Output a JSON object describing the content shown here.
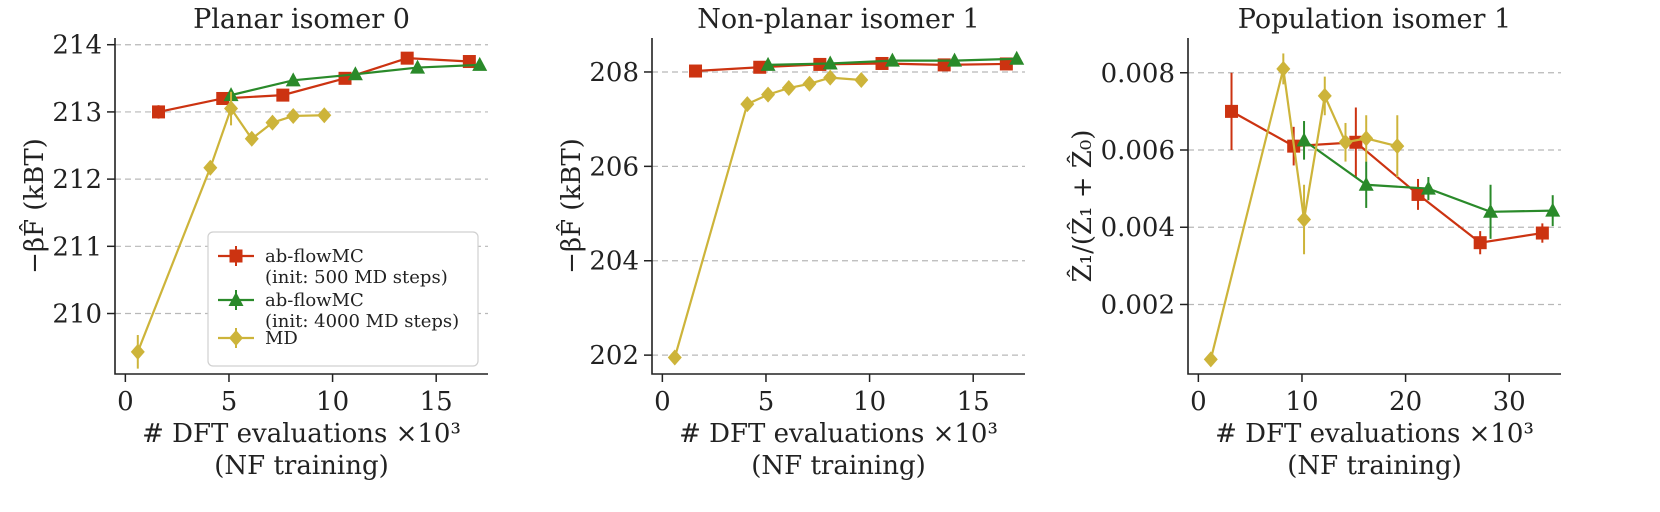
{
  "colors": {
    "ab_500": "#cc3311",
    "ab_4000": "#2a8a2a",
    "md": "#cdb43a",
    "grid": "#b8b8b8",
    "axis": "#222222"
  },
  "chart_data": [
    {
      "type": "line",
      "title": "Planar isomer 0",
      "xlabel": "# DFT evaluations ×10³",
      "xlabel2": "(NF training)",
      "ylabel": "−βF̂  (kBT)",
      "xlim": [
        -0.5,
        17.5
      ],
      "ylim": [
        209.1,
        214.1
      ],
      "xticks": [
        0,
        5,
        10,
        15
      ],
      "xtick_labels": [
        "0",
        "5",
        "10",
        "15"
      ],
      "yticks": [
        210,
        211,
        212,
        213,
        214
      ],
      "ytick_labels": [
        "210",
        "211",
        "212",
        "213",
        "214"
      ],
      "grid": "y",
      "legend": {
        "position": "lower-right",
        "entries": [
          {
            "label": "ab-flowMC",
            "label2": "(init: 500 MD steps)",
            "series": 0
          },
          {
            "label": "ab-flowMC",
            "label2": "(init: 4000 MD steps)",
            "series": 1
          },
          {
            "label": "MD",
            "label2": "",
            "series": 2
          }
        ]
      },
      "series": [
        {
          "name": "ab-flowMC (init: 500 MD steps)",
          "color": "ab_500",
          "marker": "square",
          "x": [
            1.6,
            4.7,
            7.6,
            10.6,
            13.6,
            16.6
          ],
          "y": [
            213.0,
            213.2,
            213.25,
            213.5,
            213.8,
            213.75
          ],
          "err": [
            0.1,
            0.06,
            0.06,
            0.06,
            0.05,
            0.05
          ]
        },
        {
          "name": "ab-flowMC (init: 4000 MD steps)",
          "color": "ab_4000",
          "marker": "triangle",
          "x": [
            5.1,
            8.1,
            11.1,
            14.1,
            17.1
          ],
          "y": [
            213.25,
            213.47,
            213.56,
            213.66,
            213.7
          ],
          "err": [
            0.06,
            0.06,
            0.05,
            0.05,
            0.05
          ]
        },
        {
          "name": "MD",
          "color": "md",
          "marker": "diamond",
          "x": [
            0.6,
            4.1,
            5.1,
            6.1,
            7.1,
            8.1,
            9.6
          ],
          "y": [
            209.43,
            212.17,
            213.05,
            212.6,
            212.84,
            212.94,
            212.95
          ],
          "err": [
            0.25,
            0.05,
            0.25,
            0.06,
            0.06,
            0.05,
            0.05
          ]
        }
      ]
    },
    {
      "type": "line",
      "title": "Non-planar isomer 1",
      "xlabel": "# DFT evaluations ×10³",
      "xlabel2": "(NF training)",
      "ylabel": "−βF̂  (kBT)",
      "xlim": [
        -0.5,
        17.5
      ],
      "ylim": [
        201.6,
        208.72
      ],
      "xticks": [
        0,
        5,
        10,
        15
      ],
      "xtick_labels": [
        "0",
        "5",
        "10",
        "15"
      ],
      "yticks": [
        202,
        204,
        206,
        208
      ],
      "ytick_labels": [
        "202",
        "204",
        "206",
        "208"
      ],
      "grid": "y",
      "series": [
        {
          "name": "ab-flowMC (init: 500 MD steps)",
          "color": "ab_500",
          "marker": "square",
          "x": [
            1.6,
            4.7,
            7.6,
            10.6,
            13.6,
            16.6
          ],
          "y": [
            208.02,
            208.1,
            208.16,
            208.18,
            208.15,
            208.17
          ],
          "err": [
            0.05,
            0.05,
            0.04,
            0.04,
            0.04,
            0.04
          ]
        },
        {
          "name": "ab-flowMC (init: 4000 MD steps)",
          "color": "ab_4000",
          "marker": "triangle",
          "x": [
            5.1,
            8.1,
            11.1,
            14.1,
            17.1
          ],
          "y": [
            208.15,
            208.18,
            208.24,
            208.24,
            208.28
          ],
          "err": [
            0.04,
            0.04,
            0.04,
            0.04,
            0.04
          ]
        },
        {
          "name": "MD",
          "color": "md",
          "marker": "diamond",
          "x": [
            0.6,
            4.1,
            5.1,
            6.1,
            7.1,
            8.1,
            9.6
          ],
          "y": [
            201.95,
            207.32,
            207.52,
            207.66,
            207.75,
            207.88,
            207.83
          ],
          "err": [
            0.05,
            0.06,
            0.06,
            0.06,
            0.06,
            0.08,
            0.08
          ]
        }
      ]
    },
    {
      "type": "line",
      "title": "Population isomer 1",
      "xlabel": "# DFT evaluations ×10³",
      "xlabel2": "(NF training)",
      "ylabel": "Ẑ₁/(Ẑ₁ + Ẑ₀)",
      "xlim": [
        -1,
        35
      ],
      "ylim": [
        0.0002,
        0.0089
      ],
      "xticks": [
        0,
        10,
        20,
        30
      ],
      "xtick_labels": [
        "0",
        "10",
        "20",
        "30"
      ],
      "yticks": [
        0.002,
        0.004,
        0.006,
        0.008
      ],
      "ytick_labels": [
        "0.002",
        "0.004",
        "0.006",
        "0.008"
      ],
      "grid": "y",
      "series": [
        {
          "name": "ab-flowMC (init: 500 MD steps)",
          "color": "ab_500",
          "marker": "square",
          "x": [
            3.2,
            9.2,
            15.2,
            21.2,
            27.2,
            33.2
          ],
          "y": [
            0.007,
            0.0061,
            0.0062,
            0.00485,
            0.0036,
            0.00385
          ],
          "err": [
            0.001,
            0.0005,
            0.0009,
            0.0004,
            0.0003,
            0.00025
          ]
        },
        {
          "name": "ab-flowMC (init: 4000 MD steps)",
          "color": "ab_4000",
          "marker": "triangle",
          "x": [
            10.2,
            16.2,
            22.2,
            28.2,
            34.2
          ],
          "y": [
            0.00625,
            0.0051,
            0.005,
            0.0044,
            0.00443
          ],
          "err": [
            0.0005,
            0.0006,
            0.0003,
            0.0007,
            0.0004
          ]
        },
        {
          "name": "MD",
          "color": "md",
          "marker": "diamond",
          "x": [
            1.2,
            8.2,
            10.2,
            12.2,
            14.2,
            16.2,
            19.2
          ],
          "y": [
            0.00058,
            0.0081,
            0.0042,
            0.0074,
            0.0062,
            0.0063,
            0.0061
          ],
          "err": [
            5e-05,
            0.0004,
            0.0009,
            0.0005,
            0.0005,
            0.0006,
            0.0008
          ]
        }
      ]
    }
  ]
}
